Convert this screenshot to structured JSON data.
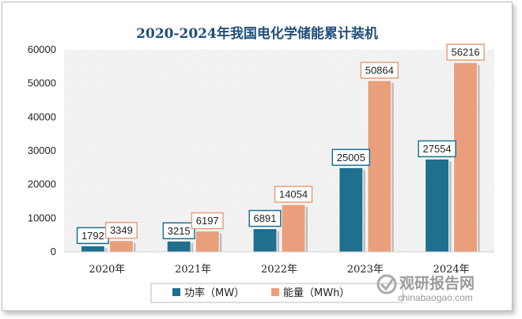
{
  "chart_data": {
    "type": "bar",
    "title": "2020-2024年我国电化学储能累计装机",
    "categories": [
      "2020年",
      "2021年",
      "2022年",
      "2023年",
      "2024年"
    ],
    "series": [
      {
        "name": "功率（MW）",
        "color": "#1f6f8f",
        "values": [
          1792,
          3215,
          6891,
          25005,
          27554
        ]
      },
      {
        "name": "能量（MWh）",
        "color": "#e99f7c",
        "values": [
          3349,
          6197,
          14054,
          50864,
          56216
        ]
      }
    ],
    "data_labels": [
      [
        "1792",
        "3215",
        "6891",
        "25005",
        "27554"
      ],
      [
        "3349",
        "6197",
        "14054",
        "50864",
        "56216"
      ]
    ],
    "ylim": [
      0,
      60000
    ],
    "yticks": [
      "0",
      "10000",
      "20000",
      "30000",
      "40000",
      "50000",
      "60000"
    ],
    "xlabel": "",
    "ylabel": "",
    "grid": false,
    "legend_position": "bottom"
  },
  "watermark": {
    "name": "观研报告网",
    "url": "chinabaogao.com"
  }
}
